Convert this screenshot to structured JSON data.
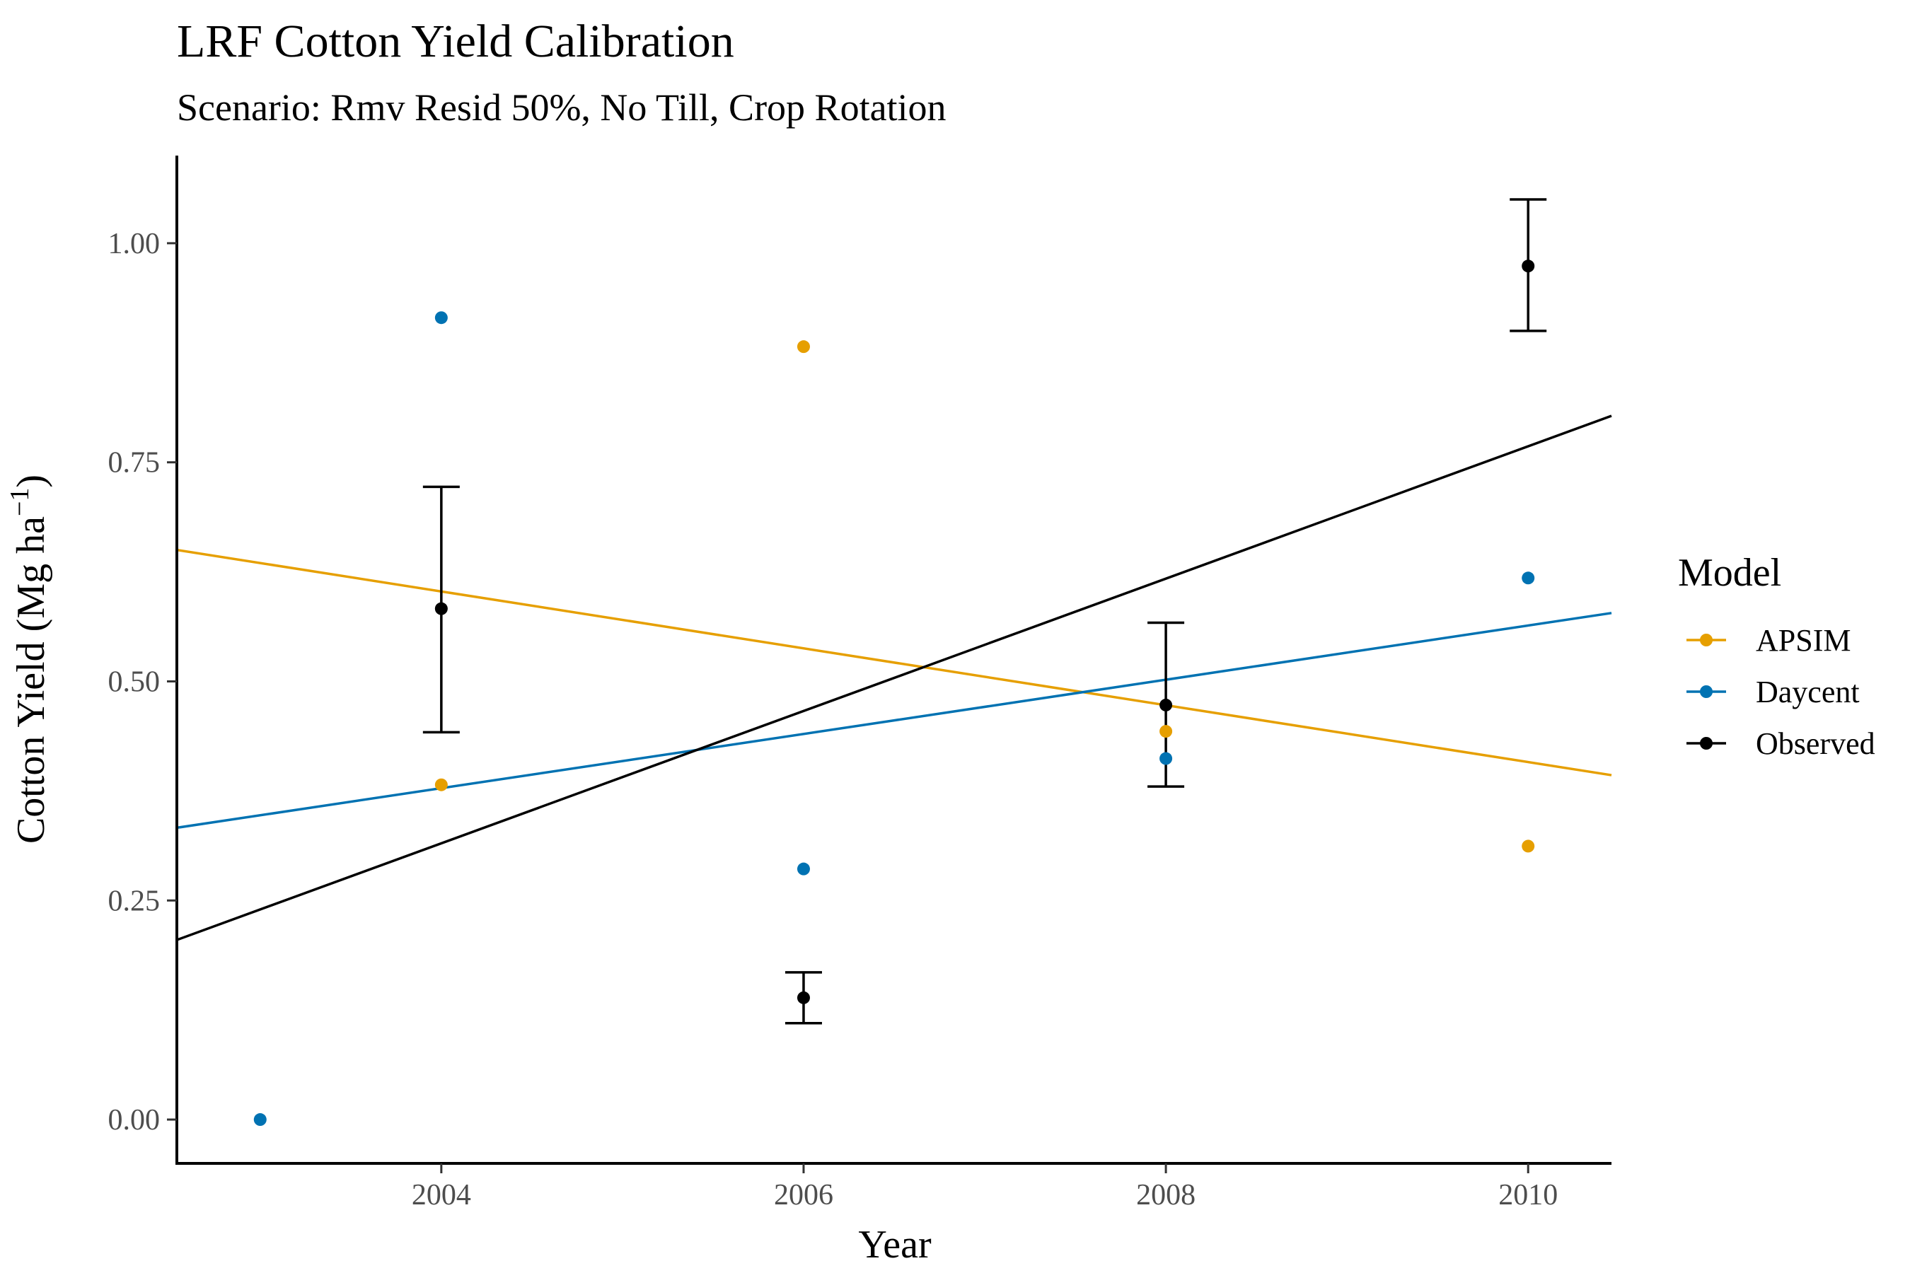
{
  "chart_data": {
    "type": "scatter",
    "title": "LRF Cotton Yield Calibration",
    "subtitle": "Scenario: Rmv Resid 50%, No Till, Crop Rotation",
    "xlabel": "Year",
    "ylabel_main": "Cotton Yield (Mg ha",
    "ylabel_sup": "−1",
    "ylabel_close": ")",
    "xlim": [
      2002.54,
      2010.46
    ],
    "ylim": [
      -0.05,
      1.1
    ],
    "x_ticks": [
      2004,
      2006,
      2008,
      2010
    ],
    "y_ticks": [
      0.0,
      0.25,
      0.5,
      0.75,
      1.0
    ],
    "x_tick_labels": [
      "2004",
      "2006",
      "2008",
      "2010"
    ],
    "y_tick_labels": [
      "0.00",
      "0.25",
      "0.50",
      "0.75",
      "1.00"
    ],
    "grid": false,
    "legend": {
      "title": "Model",
      "position": "right"
    },
    "series": [
      {
        "name": "APSIM",
        "color": "#E69F00",
        "points": [
          {
            "x": 2004,
            "y": 0.382
          },
          {
            "x": 2006,
            "y": 0.882
          },
          {
            "x": 2008,
            "y": 0.443
          },
          {
            "x": 2010,
            "y": 0.312
          }
        ],
        "trend": {
          "x0": 2002.54,
          "y0": 0.65,
          "x1": 2010.46,
          "y1": 0.393
        }
      },
      {
        "name": "Daycent",
        "color": "#0072B2",
        "points": [
          {
            "x": 2003,
            "y": 0.0
          },
          {
            "x": 2004,
            "y": 0.915
          },
          {
            "x": 2006,
            "y": 0.286
          },
          {
            "x": 2008,
            "y": 0.412
          },
          {
            "x": 2010,
            "y": 0.618
          }
        ],
        "trend": {
          "x0": 2002.54,
          "y0": 0.333,
          "x1": 2010.46,
          "y1": 0.578
        }
      },
      {
        "name": "Observed",
        "color": "#000000",
        "points": [
          {
            "x": 2004,
            "y": 0.583,
            "ymin": 0.442,
            "ymax": 0.722
          },
          {
            "x": 2006,
            "y": 0.139,
            "ymin": 0.11,
            "ymax": 0.168
          },
          {
            "x": 2008,
            "y": 0.473,
            "ymin": 0.38,
            "ymax": 0.567
          },
          {
            "x": 2010,
            "y": 0.974,
            "ymin": 0.9,
            "ymax": 1.05
          }
        ],
        "trend": {
          "x0": 2002.54,
          "y0": 0.205,
          "x1": 2010.46,
          "y1": 0.803
        }
      }
    ]
  }
}
